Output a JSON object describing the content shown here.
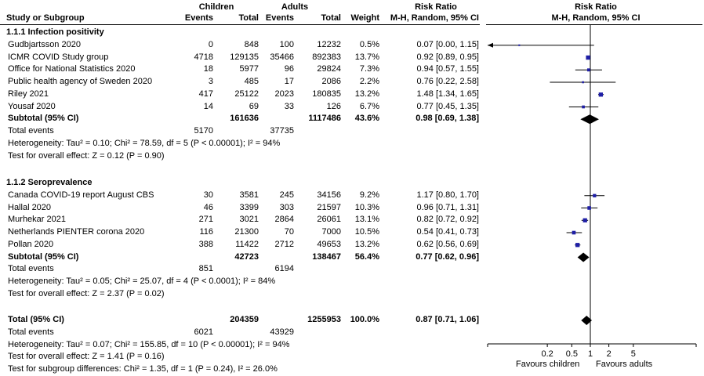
{
  "header": {
    "group1": "Children",
    "group2": "Adults",
    "study_col": "Study or Subgroup",
    "events": "Events",
    "total": "Total",
    "weight": "Weight",
    "rr_title": "Risk Ratio",
    "rr_method": "M-H, Random, 95% CI",
    "plot_title": "Risk Ratio",
    "plot_method": "M-H, Random, 95% CI"
  },
  "sections": [
    {
      "heading": "1.1.1 Infection positivity",
      "studies": [
        {
          "name": "Gudbjartsson 2020",
          "e1": "0",
          "t1": "848",
          "e2": "100",
          "t2": "12232",
          "w": "0.5%",
          "ci": "0.07 [0.00, 1.15]"
        },
        {
          "name": "ICMR COVID Study group",
          "e1": "4718",
          "t1": "129135",
          "e2": "35466",
          "t2": "892383",
          "w": "13.7%",
          "ci": "0.92 [0.89, 0.95]"
        },
        {
          "name": "Office for National Statistics 2020",
          "e1": "18",
          "t1": "5977",
          "e2": "96",
          "t2": "29824",
          "w": "7.3%",
          "ci": "0.94 [0.57, 1.55]"
        },
        {
          "name": "Public health agency of Sweden 2020",
          "e1": "3",
          "t1": "485",
          "e2": "17",
          "t2": "2086",
          "w": "2.2%",
          "ci": "0.76 [0.22, 2.58]"
        },
        {
          "name": "Riley 2021",
          "e1": "417",
          "t1": "25122",
          "e2": "2023",
          "t2": "180835",
          "w": "13.2%",
          "ci": "1.48 [1.34, 1.65]"
        },
        {
          "name": "Yousaf 2020",
          "e1": "14",
          "t1": "69",
          "e2": "33",
          "t2": "126",
          "w": "6.7%",
          "ci": "0.77 [0.45, 1.35]"
        }
      ],
      "subtotal": {
        "label": "Subtotal (95% CI)",
        "t1": "161636",
        "t2": "1117486",
        "w": "43.6%",
        "ci": "0.98 [0.69, 1.38]"
      },
      "total_events": {
        "label": "Total events",
        "e1": "5170",
        "e2": "37735"
      },
      "heterogeneity": "Heterogeneity: Tau² = 0.10; Chi² = 78.59, df = 5 (P < 0.00001); I² = 94%",
      "overall": "Test for overall effect: Z = 0.12 (P = 0.90)"
    },
    {
      "heading": "1.1.2 Seroprevalence",
      "studies": [
        {
          "name": "Canada COVID-19 report August CBS",
          "e1": "30",
          "t1": "3581",
          "e2": "245",
          "t2": "34156",
          "w": "9.2%",
          "ci": "1.17 [0.80, 1.70]"
        },
        {
          "name": "Hallal 2020",
          "e1": "46",
          "t1": "3399",
          "e2": "303",
          "t2": "21597",
          "w": "10.3%",
          "ci": "0.96 [0.71, 1.31]"
        },
        {
          "name": "Murhekar 2021",
          "e1": "271",
          "t1": "3021",
          "e2": "2864",
          "t2": "26061",
          "w": "13.1%",
          "ci": "0.82 [0.72, 0.92]"
        },
        {
          "name": "Netherlands PIENTER corona 2020",
          "e1": "116",
          "t1": "21300",
          "e2": "70",
          "t2": "7000",
          "w": "10.5%",
          "ci": "0.54 [0.41, 0.73]"
        },
        {
          "name": "Pollan 2020",
          "e1": "388",
          "t1": "11422",
          "e2": "2712",
          "t2": "49653",
          "w": "13.2%",
          "ci": "0.62 [0.56, 0.69]"
        }
      ],
      "subtotal": {
        "label": "Subtotal (95% CI)",
        "t1": "42723",
        "t2": "138467",
        "w": "56.4%",
        "ci": "0.77 [0.62, 0.96]"
      },
      "total_events": {
        "label": "Total events",
        "e1": "851",
        "e2": "6194"
      },
      "heterogeneity": "Heterogeneity: Tau² = 0.05; Chi² = 25.07, df = 4 (P < 0.0001); I² = 84%",
      "overall": "Test for overall effect: Z = 2.37 (P = 0.02)"
    }
  ],
  "total": {
    "label": "Total (95% CI)",
    "t1": "204359",
    "t2": "1255953",
    "w": "100.0%",
    "ci": "0.87 [0.71, 1.06]"
  },
  "total_events": {
    "label": "Total events",
    "e1": "6021",
    "e2": "43929"
  },
  "heterogeneity": "Heterogeneity: Tau² = 0.07; Chi² = 155.85, df = 10 (P < 0.00001); I² = 94%",
  "overall": "Test for overall effect: Z = 1.41 (P = 0.16)",
  "subgroup": "Test for subgroup differences: Chi² = 1.35, df = 1 (P = 0.24), I² = 26.0%",
  "favours_left": "Favours children",
  "favours_right": "Favours adults",
  "chart_data": {
    "type": "scatter",
    "scale": "log",
    "xlim": [
      0.1,
      6.5
    ],
    "reference_line": 1,
    "ticks": [
      "0.2",
      "0.5",
      "1",
      "2",
      "5"
    ],
    "tick_values": [
      0.2,
      0.5,
      1,
      2,
      5
    ],
    "studies": [
      {
        "name": "Gudbjartsson 2020",
        "rr": 0.07,
        "lo": 0.0,
        "hi": 1.15,
        "weight": 0.5
      },
      {
        "name": "ICMR COVID Study group",
        "rr": 0.92,
        "lo": 0.89,
        "hi": 0.95,
        "weight": 13.7
      },
      {
        "name": "Office for National Statistics 2020",
        "rr": 0.94,
        "lo": 0.57,
        "hi": 1.55,
        "weight": 7.3
      },
      {
        "name": "Public health agency of Sweden 2020",
        "rr": 0.76,
        "lo": 0.22,
        "hi": 2.58,
        "weight": 2.2
      },
      {
        "name": "Riley 2021",
        "rr": 1.48,
        "lo": 1.34,
        "hi": 1.65,
        "weight": 13.2
      },
      {
        "name": "Yousaf 2020",
        "rr": 0.77,
        "lo": 0.45,
        "hi": 1.35,
        "weight": 6.7
      },
      {
        "name": "Canada COVID-19 report August CBS",
        "rr": 1.17,
        "lo": 0.8,
        "hi": 1.7,
        "weight": 9.2
      },
      {
        "name": "Hallal 2020",
        "rr": 0.96,
        "lo": 0.71,
        "hi": 1.31,
        "weight": 10.3
      },
      {
        "name": "Murhekar 2021",
        "rr": 0.82,
        "lo": 0.72,
        "hi": 0.92,
        "weight": 13.1
      },
      {
        "name": "Netherlands PIENTER corona 2020",
        "rr": 0.54,
        "lo": 0.41,
        "hi": 0.73,
        "weight": 10.5
      },
      {
        "name": "Pollan 2020",
        "rr": 0.62,
        "lo": 0.56,
        "hi": 0.69,
        "weight": 13.2
      }
    ],
    "summaries": [
      {
        "name": "Subtotal 1.1.1",
        "rr": 0.98,
        "lo": 0.69,
        "hi": 1.38
      },
      {
        "name": "Subtotal 1.1.2",
        "rr": 0.77,
        "lo": 0.62,
        "hi": 0.96
      },
      {
        "name": "Total",
        "rr": 0.87,
        "lo": 0.71,
        "hi": 1.06
      }
    ]
  }
}
